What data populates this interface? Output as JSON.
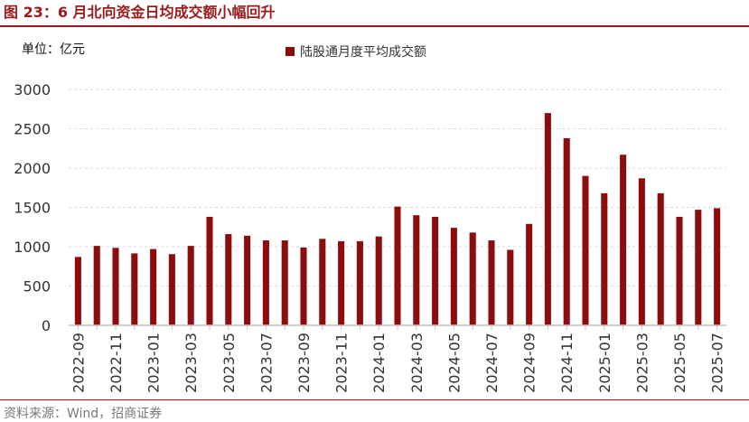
{
  "figure": {
    "title": "图 23：6 月北向资金日均成交额小幅回升",
    "unit": "单位：亿元",
    "source": "资料来源：Wind，招商证券"
  },
  "colors": {
    "accent": "#9c1a1c",
    "bar": "#8b0d0d",
    "grid": "#d9d9d9",
    "axis": "#bfbfbf"
  },
  "chart_data": {
    "type": "bar",
    "title": "",
    "xlabel": "",
    "ylabel": "",
    "ylim": [
      0,
      3000
    ],
    "yticks": [
      0,
      500,
      1000,
      1500,
      2000,
      2500,
      3000
    ],
    "grid": true,
    "legend_position": "top-center",
    "tick_labels": [
      "2022-09",
      "2022-11",
      "2023-01",
      "2023-03",
      "2023-05",
      "2023-07",
      "2023-09",
      "2023-11",
      "2024-01",
      "2024-03",
      "2024-05",
      "2024-07",
      "2024-09",
      "2024-11",
      "2025-01",
      "2025-03",
      "2025-05",
      "2025-07"
    ],
    "categories": [
      "2022-09",
      "2022-10",
      "2022-11",
      "2022-12",
      "2023-01",
      "2023-02",
      "2023-03",
      "2023-04",
      "2023-05",
      "2023-06",
      "2023-07",
      "2023-08",
      "2023-09",
      "2023-10",
      "2023-11",
      "2023-12",
      "2024-01",
      "2024-02",
      "2024-03",
      "2024-04",
      "2024-05",
      "2024-06",
      "2024-07",
      "2024-08",
      "2024-09",
      "2024-10",
      "2024-11",
      "2024-12",
      "2025-01",
      "2025-02",
      "2025-03",
      "2025-04",
      "2025-05",
      "2025-06",
      "2025-07"
    ],
    "series": [
      {
        "name": "陆股通月度平均成交额",
        "values": [
          870,
          1010,
          985,
          915,
          970,
          905,
          1010,
          1380,
          1160,
          1140,
          1080,
          1080,
          990,
          1100,
          1070,
          1070,
          1130,
          1510,
          1400,
          1380,
          1240,
          1180,
          1080,
          960,
          1290,
          2700,
          2380,
          1900,
          1680,
          2170,
          1870,
          1680,
          1380,
          1470,
          1490
        ]
      }
    ]
  }
}
